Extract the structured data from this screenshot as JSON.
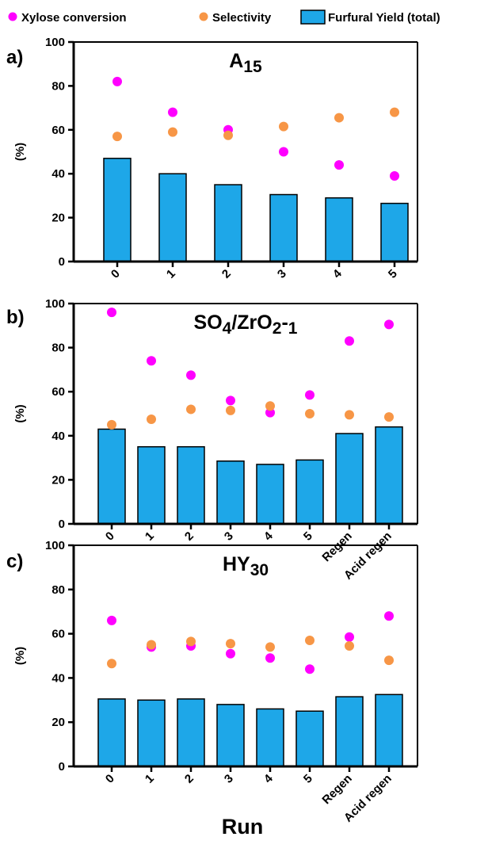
{
  "legend": {
    "conversion": "Xylose conversion",
    "selectivity": "Selectivity",
    "yield": "Furfural Yield (total)"
  },
  "colors": {
    "conversion": "#ff00ff",
    "selectivity": "#f79646",
    "yield": "#1ea7e8"
  },
  "x_title": "Run",
  "chart_data": [
    {
      "type": "bar",
      "panel_label": "a)",
      "title": "A15",
      "ylabel": "(%)",
      "ylim": [
        0,
        100
      ],
      "yticks": [
        0,
        20,
        40,
        60,
        80,
        100
      ],
      "categories": [
        "0",
        "1",
        "2",
        "3",
        "4",
        "5"
      ],
      "series": [
        {
          "name": "Furfural Yield (total)",
          "kind": "bar",
          "values": [
            47,
            40,
            35,
            30.5,
            29,
            26.5
          ]
        },
        {
          "name": "Xylose conversion",
          "kind": "point",
          "values": [
            82,
            68,
            60,
            50,
            44,
            39
          ]
        },
        {
          "name": "Selectivity",
          "kind": "point",
          "values": [
            57,
            59,
            57.5,
            61.5,
            65.5,
            68
          ]
        }
      ]
    },
    {
      "type": "bar",
      "panel_label": "b)",
      "title": "SO4/ZrO2-1",
      "ylabel": "(%)",
      "ylim": [
        0,
        100
      ],
      "yticks": [
        0,
        20,
        40,
        60,
        80,
        100
      ],
      "categories": [
        "0",
        "1",
        "2",
        "3",
        "4",
        "5",
        "Regen",
        "Acid regen"
      ],
      "series": [
        {
          "name": "Furfural Yield (total)",
          "kind": "bar",
          "values": [
            43,
            35,
            35,
            28.5,
            27,
            29,
            41,
            44
          ]
        },
        {
          "name": "Xylose conversion",
          "kind": "point",
          "values": [
            96,
            74,
            67.5,
            56,
            50.5,
            58.5,
            83,
            90.5
          ]
        },
        {
          "name": "Selectivity",
          "kind": "point",
          "values": [
            45,
            47.5,
            52,
            51.5,
            53.5,
            50,
            49.5,
            48.5
          ]
        }
      ]
    },
    {
      "type": "bar",
      "panel_label": "c)",
      "title": "HY30",
      "ylabel": "(%)",
      "ylim": [
        0,
        100
      ],
      "yticks": [
        0,
        20,
        40,
        60,
        80,
        100
      ],
      "categories": [
        "0",
        "1",
        "2",
        "3",
        "4",
        "5",
        "Regen",
        "Acid regen"
      ],
      "series": [
        {
          "name": "Furfural Yield (total)",
          "kind": "bar",
          "values": [
            30.5,
            30,
            30.5,
            28,
            26,
            25,
            31.5,
            32.5
          ]
        },
        {
          "name": "Xylose conversion",
          "kind": "point",
          "values": [
            66,
            54,
            54.5,
            51,
            49,
            44,
            58.5,
            68
          ]
        },
        {
          "name": "Selectivity",
          "kind": "point",
          "values": [
            46.5,
            55,
            56.5,
            55.5,
            54,
            57,
            54.5,
            48
          ]
        }
      ]
    }
  ]
}
